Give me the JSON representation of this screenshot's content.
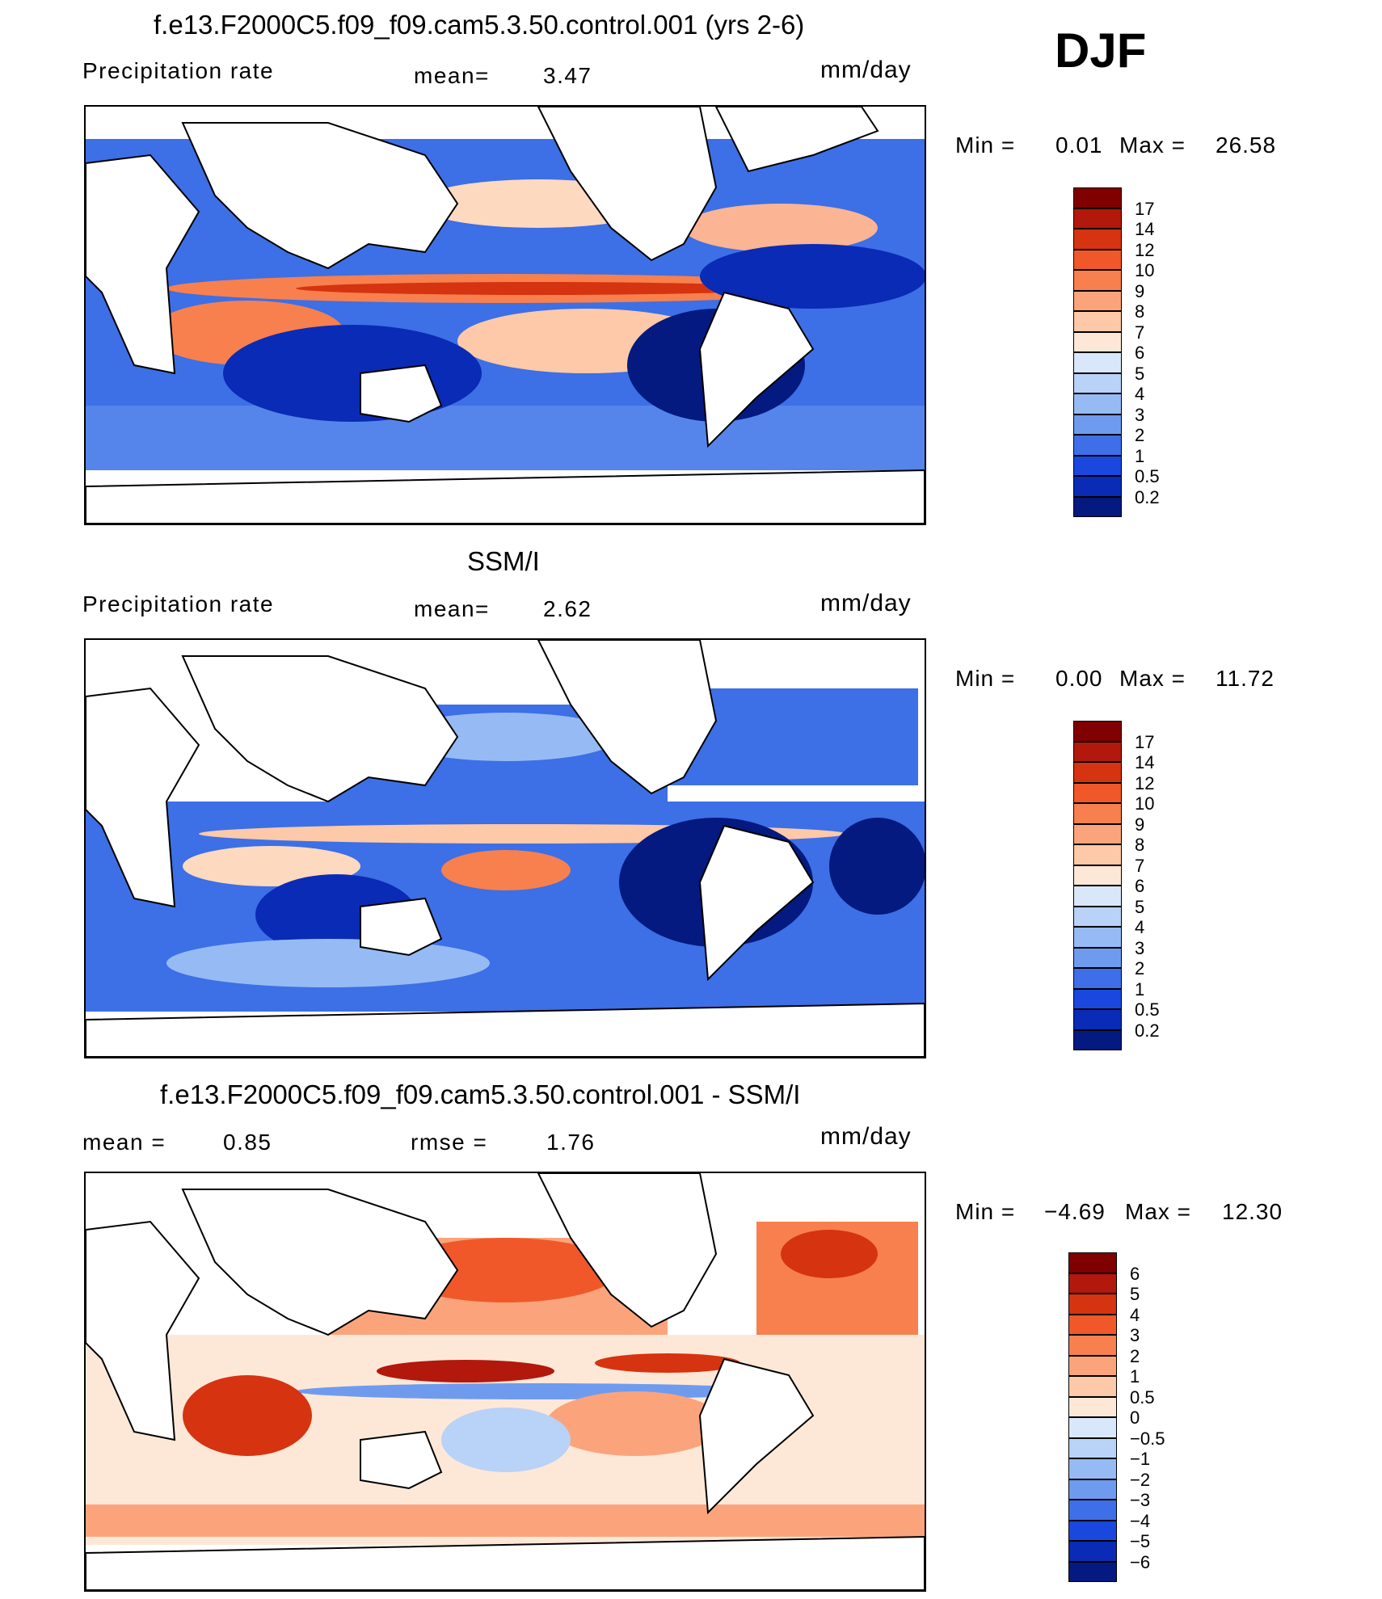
{
  "djf_label": "DJF",
  "panels": [
    {
      "title": "f.e13.F2000C5.f09_f09.cam5.3.50.control.001 (yrs 2-6)",
      "left_label": "Precipitation  rate",
      "middle_label": "mean=",
      "middle_value": "3.47",
      "units": "mm/day",
      "min_label": "Min  =",
      "min_value": "0.01",
      "max_label": "Max  =",
      "max_value": "26.58",
      "colorbar": {
        "levels": [
          "17",
          "14",
          "12",
          "10",
          "9",
          "8",
          "7",
          "6",
          "5",
          "4",
          "3",
          "2",
          "1",
          "0.5",
          "0.2"
        ],
        "colors": [
          "#800000",
          "#b2180c",
          "#d63310",
          "#f0582a",
          "#f7804e",
          "#fba47c",
          "#fdc9a8",
          "#fde8d8",
          "#d8e8fa",
          "#b8d2f8",
          "#96bbf4",
          "#6f9bef",
          "#3f6fe8",
          "#1a48de",
          "#0a2bb5",
          "#041a80"
        ]
      }
    },
    {
      "title": "SSM/I",
      "left_label": "Precipitation  rate",
      "middle_label": "mean=",
      "middle_value": "2.62",
      "units": "mm/day",
      "min_label": "Min  =",
      "min_value": "0.00",
      "max_label": "Max  =",
      "max_value": "11.72",
      "colorbar": {
        "levels": [
          "17",
          "14",
          "12",
          "10",
          "9",
          "8",
          "7",
          "6",
          "5",
          "4",
          "3",
          "2",
          "1",
          "0.5",
          "0.2"
        ],
        "colors": [
          "#800000",
          "#b2180c",
          "#d63310",
          "#f0582a",
          "#f7804e",
          "#fba47c",
          "#fdc9a8",
          "#fde8d8",
          "#d8e8fa",
          "#b8d2f8",
          "#96bbf4",
          "#6f9bef",
          "#3f6fe8",
          "#1a48de",
          "#0a2bb5",
          "#041a80"
        ]
      }
    },
    {
      "title": "f.e13.F2000C5.f09_f09.cam5.3.50.control.001 - SSM/I",
      "left_label": "mean  =",
      "left_value": "0.85",
      "middle_label": "rmse  =",
      "middle_value": "1.76",
      "units": "mm/day",
      "min_label": "Min  =",
      "min_value": "−4.69",
      "max_label": "Max  =",
      "max_value": "12.30",
      "colorbar": {
        "levels": [
          "6",
          "5",
          "4",
          "3",
          "2",
          "1",
          "0.5",
          "0",
          "−0.5",
          "−1",
          "−2",
          "−3",
          "−4",
          "−5",
          "−6"
        ],
        "colors": [
          "#800000",
          "#b2180c",
          "#d63310",
          "#f0582a",
          "#f7804e",
          "#fba47c",
          "#fdc9a8",
          "#fde8d8",
          "#d8e8fa",
          "#b8d2f8",
          "#96bbf4",
          "#6f9bef",
          "#3f6fe8",
          "#1a48de",
          "#0a2bb5",
          "#041a80"
        ]
      }
    }
  ]
}
